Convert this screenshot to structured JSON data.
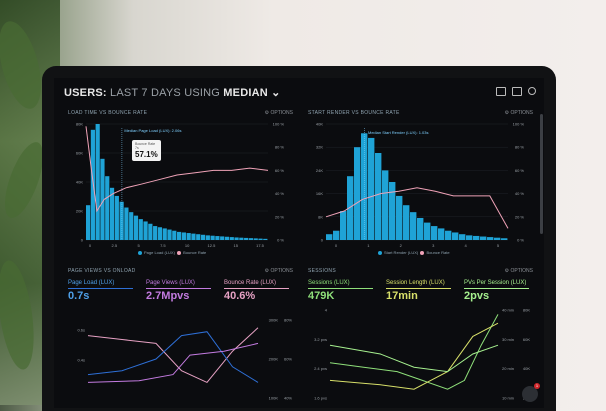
{
  "header": {
    "prefix": "USERS:",
    "range": "LAST 7 DAYS",
    "using": "USING",
    "method": "MEDIAN"
  },
  "panels": {
    "load": {
      "title": "LOAD TIME VS BOUNCE RATE",
      "options": "⚙ OPTIONS",
      "annotation": "Median Page Load (LUX): 2.06s",
      "legend": [
        "Page Load (LUX)",
        "Bounce Rate"
      ],
      "yleft": [
        "80K",
        "60K",
        "40K",
        "20K",
        "0"
      ],
      "yright": [
        "100 %",
        "80 %",
        "60 %",
        "40 %",
        "20 %",
        "0 %"
      ],
      "x": [
        "0",
        "2.5",
        "5",
        "7.5",
        "10",
        "12.5",
        "15",
        "17.5"
      ],
      "tooltip": {
        "label": "Bounce Rate",
        "sub": "7s",
        "value": "57.1%"
      }
    },
    "render": {
      "title": "START RENDER VS BOUNCE RATE",
      "options": "⚙ OPTIONS",
      "annotation": "Median Start Render (LUX): 1.03s",
      "legend": [
        "Start Render (LUX)",
        "Bounce Rate"
      ],
      "yleft": [
        "40K",
        "32K",
        "24K",
        "16K",
        "8K",
        "0"
      ],
      "yright": [
        "100 %",
        "80 %",
        "60 %",
        "40 %",
        "20 %",
        "0 %"
      ],
      "x": [
        "0",
        "1",
        "2",
        "3",
        "4",
        "5"
      ]
    },
    "views": {
      "title": "PAGE VIEWS VS ONLOAD",
      "options": "⚙ OPTIONS",
      "metrics": [
        {
          "label": "Page Load (LUX)",
          "value": "0.7s"
        },
        {
          "label": "Page Views (LUX)",
          "value": "2.7Mpvs"
        },
        {
          "label": "Bounce Rate (LUX)",
          "value": "40.6%"
        }
      ],
      "yleft": [
        "0.6s",
        "0.4s"
      ],
      "yright1": [
        "300K",
        "200K",
        "100K"
      ],
      "yright2": [
        "80%",
        "60%",
        "40%"
      ]
    },
    "sessions": {
      "title": "SESSIONS",
      "options": "⚙ OPTIONS",
      "metrics": [
        {
          "label": "Sessions (LUX)",
          "value": "479K"
        },
        {
          "label": "Session Length (LUX)",
          "value": "17min"
        },
        {
          "label": "PVs Per Session (LUX)",
          "value": "2pvs"
        }
      ],
      "yleft": [
        "4",
        "3.2 pvs",
        "2.4 pvs",
        "1.6 pvs"
      ],
      "yright1": [
        "40 min",
        "30 min",
        "20 min",
        "10 min"
      ],
      "yright2": [
        "80K",
        "60K",
        "40K",
        "20K"
      ]
    }
  },
  "chat_badge": "1",
  "colors": {
    "bar": "#1fa3d6",
    "bounce": "#f0a3b8",
    "pink": "#e7a2c4",
    "blue": "#2e6fd6",
    "green": "#8fe07a",
    "yellow": "#d8e06a",
    "magenta": "#c37be0"
  }
}
